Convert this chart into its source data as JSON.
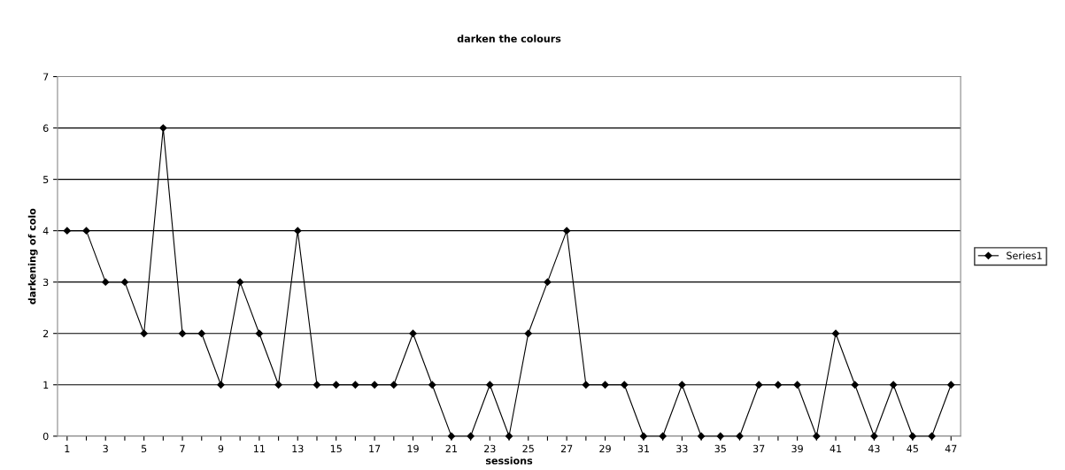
{
  "chart_data": {
    "type": "line",
    "title": "darken the colours",
    "xlabel": "sessions",
    "ylabel": "darkening of colo",
    "categories": [
      "1",
      null,
      "3",
      null,
      "5",
      null,
      "7",
      null,
      "9",
      null,
      "11",
      null,
      "13",
      null,
      "15",
      null,
      "17",
      null,
      "19",
      null,
      "21",
      null,
      "23",
      null,
      "25",
      null,
      "27",
      null,
      "29",
      null,
      "31",
      null,
      "33",
      null,
      "35",
      null,
      "37",
      null,
      "39",
      null,
      "41",
      null,
      "43",
      null,
      "45",
      null,
      "47"
    ],
    "series": [
      {
        "name": "Series1",
        "color": "#000000",
        "values": [
          4,
          4,
          3,
          3,
          2,
          6,
          2,
          2,
          1,
          3,
          2,
          1,
          4,
          1,
          1,
          1,
          1,
          1,
          2,
          1,
          0,
          0,
          1,
          0,
          2,
          3,
          4,
          1,
          1,
          1,
          0,
          0,
          1,
          0,
          0,
          0,
          1,
          1,
          1,
          0,
          2,
          1,
          0,
          1,
          0,
          0,
          1
        ]
      }
    ],
    "ylim": [
      0,
      7
    ],
    "yticks": [
      0,
      1,
      2,
      3,
      4,
      5,
      6,
      7
    ],
    "grid": "y",
    "legend": "right",
    "marker": "diamond",
    "line_style": "solid"
  }
}
